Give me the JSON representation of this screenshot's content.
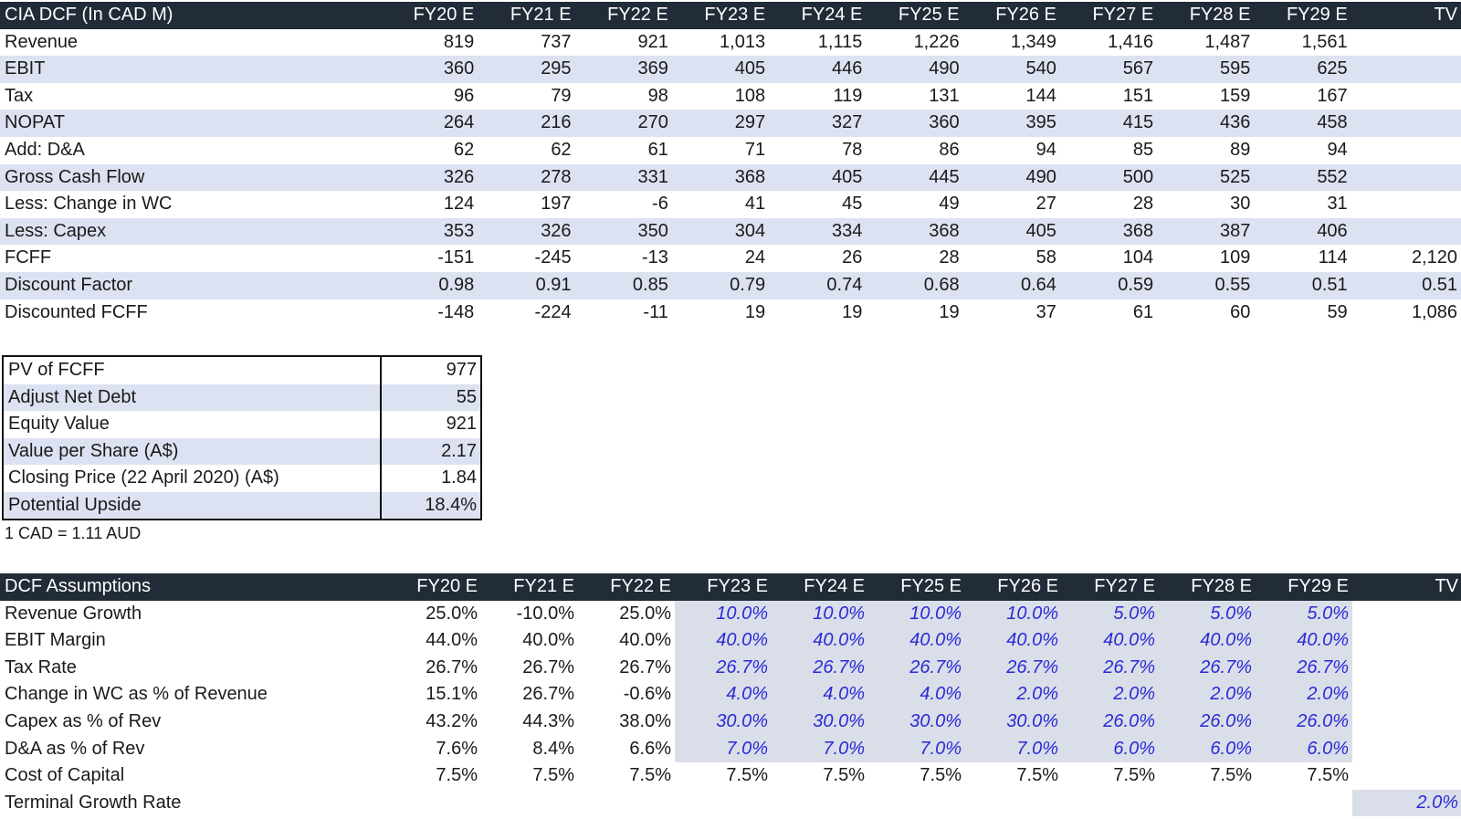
{
  "dcf": {
    "title": "CIA DCF (In CAD M)",
    "columns": [
      "FY20 E",
      "FY21 E",
      "FY22 E",
      "FY23 E",
      "FY24 E",
      "FY25 E",
      "FY26 E",
      "FY27 E",
      "FY28 E",
      "FY29 E",
      "TV"
    ],
    "rows": [
      {
        "label": "Revenue",
        "values": [
          "819",
          "737",
          "921",
          "1,013",
          "1,115",
          "1,226",
          "1,349",
          "1,416",
          "1,487",
          "1,561",
          ""
        ]
      },
      {
        "label": "EBIT",
        "values": [
          "360",
          "295",
          "369",
          "405",
          "446",
          "490",
          "540",
          "567",
          "595",
          "625",
          ""
        ]
      },
      {
        "label": "Tax",
        "values": [
          "96",
          "79",
          "98",
          "108",
          "119",
          "131",
          "144",
          "151",
          "159",
          "167",
          ""
        ]
      },
      {
        "label": "NOPAT",
        "values": [
          "264",
          "216",
          "270",
          "297",
          "327",
          "360",
          "395",
          "415",
          "436",
          "458",
          ""
        ]
      },
      {
        "label": "Add: D&A",
        "values": [
          "62",
          "62",
          "61",
          "71",
          "78",
          "86",
          "94",
          "85",
          "89",
          "94",
          ""
        ]
      },
      {
        "label": "Gross Cash Flow",
        "values": [
          "326",
          "278",
          "331",
          "368",
          "405",
          "445",
          "490",
          "500",
          "525",
          "552",
          ""
        ]
      },
      {
        "label": "Less: Change in WC",
        "values": [
          "124",
          "197",
          "-6",
          "41",
          "45",
          "49",
          "27",
          "28",
          "30",
          "31",
          ""
        ]
      },
      {
        "label": "Less: Capex",
        "values": [
          "353",
          "326",
          "350",
          "304",
          "334",
          "368",
          "405",
          "368",
          "387",
          "406",
          ""
        ]
      },
      {
        "label": "FCFF",
        "values": [
          "-151",
          "-245",
          "-13",
          "24",
          "26",
          "28",
          "58",
          "104",
          "109",
          "114",
          "2,120"
        ]
      },
      {
        "label": "Discount Factor",
        "values": [
          "0.98",
          "0.91",
          "0.85",
          "0.79",
          "0.74",
          "0.68",
          "0.64",
          "0.59",
          "0.55",
          "0.51",
          "0.51"
        ]
      },
      {
        "label": "Discounted FCFF",
        "values": [
          "-148",
          "-224",
          "-11",
          "19",
          "19",
          "19",
          "37",
          "61",
          "60",
          "59",
          "1,086"
        ]
      }
    ]
  },
  "summary": {
    "rows": [
      {
        "label": "PV of FCFF",
        "value": "977"
      },
      {
        "label": "Adjust Net Debt",
        "value": "55"
      },
      {
        "label": "Equity Value",
        "value": "921"
      },
      {
        "label": "Value per Share (A$)",
        "value": "2.17"
      },
      {
        "label": "Closing Price (22 April 2020) (A$)",
        "value": "1.84"
      },
      {
        "label": "Potential Upside",
        "value": "18.4%"
      }
    ],
    "fx_note": "1 CAD = 1.11 AUD"
  },
  "assumptions": {
    "title": "DCF Assumptions",
    "columns": [
      "FY20 E",
      "FY21 E",
      "FY22 E",
      "FY23 E",
      "FY24 E",
      "FY25 E",
      "FY26 E",
      "FY27 E",
      "FY28 E",
      "FY29 E",
      "TV"
    ],
    "rows": [
      {
        "label": "Revenue Growth",
        "values": [
          "25.0%",
          "-10.0%",
          "25.0%",
          "10.0%",
          "10.0%",
          "10.0%",
          "10.0%",
          "5.0%",
          "5.0%",
          "5.0%",
          ""
        ]
      },
      {
        "label": "EBIT Margin",
        "values": [
          "44.0%",
          "40.0%",
          "40.0%",
          "40.0%",
          "40.0%",
          "40.0%",
          "40.0%",
          "40.0%",
          "40.0%",
          "40.0%",
          ""
        ]
      },
      {
        "label": "Tax Rate",
        "values": [
          "26.7%",
          "26.7%",
          "26.7%",
          "26.7%",
          "26.7%",
          "26.7%",
          "26.7%",
          "26.7%",
          "26.7%",
          "26.7%",
          ""
        ]
      },
      {
        "label": "Change in WC as % of Revenue",
        "values": [
          "15.1%",
          "26.7%",
          "-0.6%",
          "4.0%",
          "4.0%",
          "4.0%",
          "2.0%",
          "2.0%",
          "2.0%",
          "2.0%",
          ""
        ]
      },
      {
        "label": "Capex as % of Rev",
        "values": [
          "43.2%",
          "44.3%",
          "38.0%",
          "30.0%",
          "30.0%",
          "30.0%",
          "30.0%",
          "26.0%",
          "26.0%",
          "26.0%",
          ""
        ]
      },
      {
        "label": "D&A as % of Rev",
        "values": [
          "7.6%",
          "8.4%",
          "6.6%",
          "7.0%",
          "7.0%",
          "7.0%",
          "7.0%",
          "6.0%",
          "6.0%",
          "6.0%",
          ""
        ]
      },
      {
        "label": "Cost of Capital",
        "values": [
          "7.5%",
          "7.5%",
          "7.5%",
          "7.5%",
          "7.5%",
          "7.5%",
          "7.5%",
          "7.5%",
          "7.5%",
          "7.5%",
          ""
        ]
      },
      {
        "label": "Terminal Growth Rate",
        "values": [
          "",
          "",
          "",
          "",
          "",
          "",
          "",
          "",
          "",
          "",
          "2.0%"
        ]
      }
    ]
  },
  "colors": {
    "header_bg": "#222b38",
    "band_bg": "#dce2f1",
    "input_bg": "#dadee9",
    "input_text": "#2a2ad6"
  }
}
